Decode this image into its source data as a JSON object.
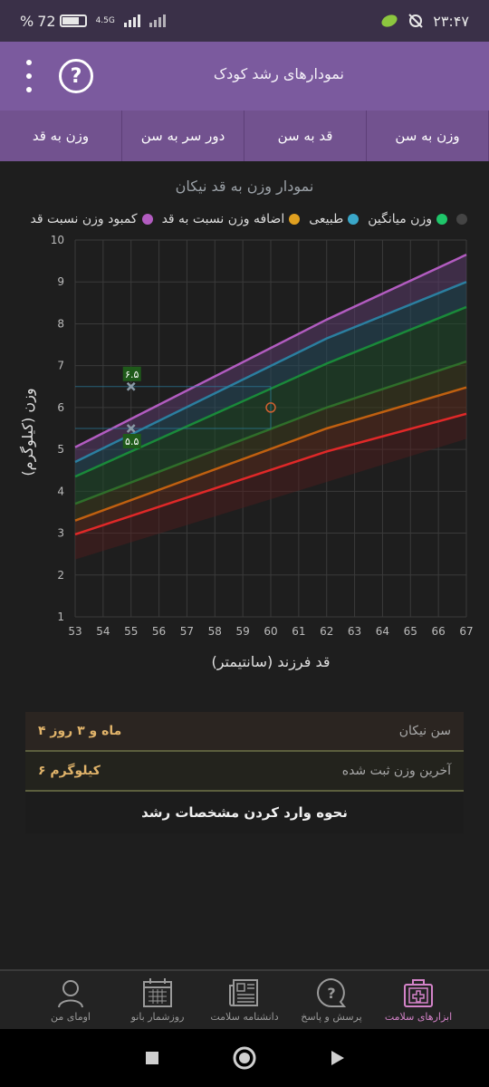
{
  "status_bar": {
    "battery": "72",
    "battery_prefix": "%",
    "network": "4.5G",
    "time": "۲۳:۴۷"
  },
  "app": {
    "title": "نمودارهای رشد کودک",
    "help_icon": "question-circle-icon",
    "menu_icon": "more-vertical-icon"
  },
  "tabs": [
    {
      "label": "وزن به سن",
      "active": false
    },
    {
      "label": "قد به سن",
      "active": false
    },
    {
      "label": "دور سر به سن",
      "active": false
    },
    {
      "label": "وزن به قد",
      "active": true
    }
  ],
  "chart_title": "نمودار وزن به قد نیکان",
  "legend": [
    {
      "label": "کمبود وزن نسبت قد",
      "color": "#b25cc0"
    },
    {
      "label": "اضافه وزن نسبت به قد",
      "color": "#e0a020"
    },
    {
      "label": "طبیعی",
      "color": "#3aa7c9"
    },
    {
      "label": "وزن میانگین",
      "color": "#1fc66a"
    },
    {
      "label": "",
      "color": "#444444"
    }
  ],
  "chart_data": {
    "type": "line",
    "xlabel": "قد فرزند (سانتیمتر)",
    "ylabel": "وزن (کیلوگرم)",
    "xlim": [
      53,
      67
    ],
    "ylim": [
      1,
      10
    ],
    "xticks": [
      "53",
      "54",
      "55",
      "56",
      "57",
      "58",
      "59",
      "60",
      "61",
      "62",
      "63",
      "64",
      "65",
      "66",
      "67"
    ],
    "yticks": [
      "1",
      "2",
      "3",
      "4",
      "5",
      "6",
      "7",
      "8",
      "9",
      "10"
    ],
    "series": [
      {
        "color": "#b25cc0",
        "values": [
          [
            53,
            5.05
          ],
          [
            62,
            8.1
          ],
          [
            67,
            9.65
          ]
        ]
      },
      {
        "color": "#2b7fa0",
        "values": [
          [
            53,
            4.7
          ],
          [
            62,
            7.65
          ],
          [
            67,
            9.0
          ]
        ]
      },
      {
        "color": "#1a8a3a",
        "values": [
          [
            53,
            4.35
          ],
          [
            62,
            7.05
          ],
          [
            67,
            8.4
          ]
        ]
      },
      {
        "color": "#2f6e2a",
        "values": [
          [
            53,
            3.7
          ],
          [
            62,
            6.0
          ],
          [
            67,
            7.1
          ]
        ]
      },
      {
        "color": "#c06010",
        "values": [
          [
            53,
            3.3
          ],
          [
            62,
            5.5
          ],
          [
            67,
            6.48
          ]
        ]
      },
      {
        "color": "#e02828",
        "values": [
          [
            53,
            2.97
          ],
          [
            62,
            4.95
          ],
          [
            67,
            5.85
          ]
        ]
      }
    ],
    "markers": [
      {
        "x": 55,
        "y": 6.5,
        "label": "۶.۵"
      },
      {
        "x": 55,
        "y": 5.5,
        "label": "۵.۵"
      }
    ],
    "current_point": {
      "x": 60,
      "y": 6
    }
  },
  "info": {
    "age_label": "سن نیکان",
    "age_value": "۴ ماه و ۳ روز",
    "weight_label": "آخرین وزن ثبت شده",
    "weight_value": "۶ کیلوگرم",
    "how_to_label": "نحوه وارد کردن مشخصات رشد"
  },
  "bottom_nav": [
    {
      "label": "اومای من",
      "icon": "user-icon",
      "active": false
    },
    {
      "label": "روزشمار بانو",
      "icon": "calendar-icon",
      "active": false
    },
    {
      "label": "دانشنامه سلامت",
      "icon": "newspaper-icon",
      "active": false
    },
    {
      "label": "پرسش و پاسخ",
      "icon": "question-bubble-icon",
      "active": false
    },
    {
      "label": "ابزارهای سلامت",
      "icon": "medical-kit-icon",
      "active": true
    }
  ]
}
